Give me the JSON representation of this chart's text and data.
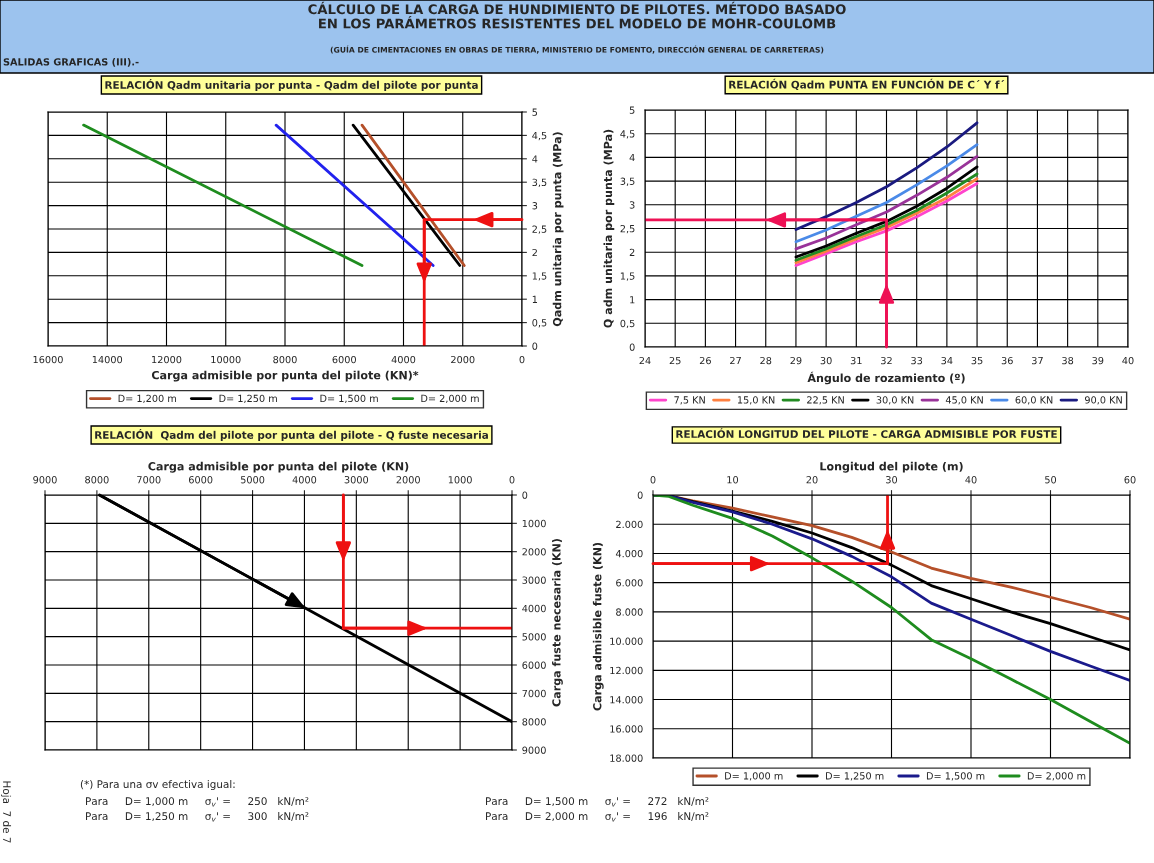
{
  "chart_data": [
    {
      "type": "other",
      "title": "CÁLCULO DE LA CARGA DE HUNDIMIENTO DE PILOTES. MÉTODO BASADO\nEN LOS PARÁMETROS RESISTENTES DEL MODELO DE MOHR-COULOMB",
      "subtitle": "(GUÍA DE CIMENTACIONES EN OBRAS DE TIERRA, MINISTERIO DE FOMENTO, DIRECCIÓN GENERAL DE CARRETERAS)",
      "annotations": [
        "SALIDAS GRAFICAS (III).-"
      ]
    },
    {
      "type": "line",
      "title": "RELACIÓN Qadm unitaria por punta - Qadm del pilote por punta",
      "xlabel": "Carga admisible por punta del pilote (KN)*",
      "y2label": "Qadm unitaria por punta (MPa)",
      "xlim": [
        16000,
        0
      ],
      "xticks": [
        16000,
        14000,
        12000,
        10000,
        8000,
        6000,
        4000,
        2000,
        0
      ],
      "y2lim": [
        0,
        5
      ],
      "y2ticks": [
        0,
        {
          "value": 0.5,
          "label": "0,5"
        },
        1,
        {
          "value": 1.5,
          "label": "1,5"
        },
        2,
        {
          "value": 2.5,
          "label": "2,5"
        },
        3,
        {
          "value": 3.5,
          "label": "3,5"
        },
        4,
        {
          "value": 4.5,
          "label": "4,5"
        },
        5
      ],
      "grid": true,
      "legend": "bottom",
      "series": [
        {
          "name": "D= 1,200 m",
          "color": "#b5502a",
          "axis": "y2",
          "x": [
            5400,
            1950
          ],
          "values": [
            4.72,
            1.72
          ]
        },
        {
          "name": "D= 1,250 m",
          "color": "#000000",
          "axis": "y2",
          "x": [
            5700,
            2100
          ],
          "values": [
            4.72,
            1.72
          ]
        },
        {
          "name": "D= 1,500 m",
          "color": "#2222ee",
          "axis": "y2",
          "x": [
            8300,
            3000
          ],
          "values": [
            4.72,
            1.72
          ]
        },
        {
          "name": "D= 2,000 m",
          "color": "#1e8c1e",
          "axis": "y2",
          "x": [
            14800,
            5400
          ],
          "values": [
            4.72,
            1.72
          ]
        },
        {
          "color": "#ee1111",
          "axis": "y2",
          "x": [
            0,
            3300,
            3300
          ],
          "values": [
            2.7,
            2.7,
            0
          ]
        }
      ]
    },
    {
      "type": "line",
      "title": "RELACIÓN Qadm PUNTA EN FUNCIÓN DE C´ Y f´",
      "xlabel": "Ángulo de rozamiento (º)",
      "ylabel": "Q adm unitaria por punta (MPa)",
      "xlim": [
        24,
        40
      ],
      "xticks": [
        24,
        25,
        26,
        27,
        28,
        29,
        30,
        31,
        32,
        33,
        34,
        35,
        36,
        37,
        38,
        39,
        40
      ],
      "ylim": [
        0,
        5
      ],
      "yticks": [
        0,
        {
          "value": 0.5,
          "label": "0,5"
        },
        1,
        {
          "value": 1.5,
          "label": "1,5"
        },
        2,
        {
          "value": 2.5,
          "label": "2,5"
        },
        3,
        {
          "value": 3.5,
          "label": "3,5"
        },
        4,
        {
          "value": 4.5,
          "label": "4,5"
        },
        5
      ],
      "grid": true,
      "legend": "bottom",
      "series": [
        {
          "name": "7,5 KN",
          "color": "#ff44cc",
          "x": [
            29,
            30,
            31,
            32,
            33,
            34,
            35
          ],
          "values": [
            1.72,
            1.97,
            2.22,
            2.45,
            2.75,
            3.08,
            3.45
          ]
        },
        {
          "name": "15,0 KN",
          "color": "#ff8040",
          "x": [
            29,
            30,
            31,
            32,
            33,
            34,
            35
          ],
          "values": [
            1.78,
            2.02,
            2.28,
            2.52,
            2.82,
            3.15,
            3.55
          ]
        },
        {
          "name": "22,5 KN",
          "color": "#228b22",
          "x": [
            29,
            30,
            31,
            32,
            33,
            34,
            35
          ],
          "values": [
            1.83,
            2.07,
            2.33,
            2.58,
            2.88,
            3.25,
            3.65
          ]
        },
        {
          "name": "30,0 KN",
          "color": "#000000",
          "x": [
            29,
            30,
            31,
            32,
            33,
            34,
            35
          ],
          "values": [
            1.9,
            2.13,
            2.4,
            2.65,
            2.97,
            3.35,
            3.8
          ]
        },
        {
          "name": "45,0 KN",
          "color": "#993399",
          "x": [
            29,
            30,
            31,
            32,
            33,
            34,
            35
          ],
          "values": [
            2.07,
            2.3,
            2.58,
            2.85,
            3.2,
            3.58,
            4.02
          ]
        },
        {
          "name": "60,0 KN",
          "color": "#4a8ae8",
          "x": [
            29,
            30,
            31,
            32,
            33,
            34,
            35
          ],
          "values": [
            2.22,
            2.47,
            2.76,
            3.05,
            3.42,
            3.82,
            4.27
          ]
        },
        {
          "name": "90,0 KN",
          "color": "#1a1a80",
          "x": [
            29,
            30,
            31,
            32,
            33,
            34,
            35
          ],
          "values": [
            2.48,
            2.75,
            3.05,
            3.38,
            3.78,
            4.22,
            4.73
          ]
        },
        {
          "color": "#ee1155",
          "x": [
            32,
            32,
            24
          ],
          "values": [
            0,
            2.68,
            2.68
          ]
        }
      ]
    },
    {
      "type": "line",
      "title": "RELACIÓN  Qadm del pilote por punta del pilote - Q fuste necesaria",
      "xlabel": "Carga admisible por punta del pilote (KN)",
      "y2label": "Carga fuste necesaria (KN)",
      "xlim": [
        9000,
        0
      ],
      "xticks": [
        9000,
        8000,
        7000,
        6000,
        5000,
        4000,
        3000,
        2000,
        1000,
        0
      ],
      "y2lim": [
        9000,
        0
      ],
      "y2ticks": [
        0,
        1000,
        2000,
        3000,
        4000,
        5000,
        6000,
        7000,
        8000,
        9000
      ],
      "grid": true,
      "series": [
        {
          "color": "#000000",
          "axis": "y2",
          "x": [
            7950,
            0
          ],
          "values": [
            0,
            8000
          ]
        },
        {
          "color": "#ee1111",
          "axis": "y2",
          "x": [
            3250,
            3250,
            0
          ],
          "values": [
            0,
            4700,
            4700
          ]
        }
      ]
    },
    {
      "type": "line",
      "title": "RELACIÓN LONGITUD DEL PILOTE - CARGA ADMISIBLE POR FUSTE",
      "xlabel": "Longitud del pilote (m)",
      "ylabel": "Carga admisible fuste (KN)",
      "xlim": [
        0,
        60
      ],
      "xticks": [
        0,
        10,
        20,
        30,
        40,
        50,
        60
      ],
      "ylim": [
        18000,
        0
      ],
      "yticks": [
        0,
        {
          "value": 2000,
          "label": "2.000"
        },
        {
          "value": 4000,
          "label": "4.000"
        },
        {
          "value": 6000,
          "label": "6.000"
        },
        {
          "value": 8000,
          "label": "8.000"
        },
        {
          "value": 10000,
          "label": "10.000"
        },
        {
          "value": 12000,
          "label": "12.000"
        },
        {
          "value": 14000,
          "label": "14.000"
        },
        {
          "value": 16000,
          "label": "16.000"
        },
        {
          "value": 18000,
          "label": "18.000"
        }
      ],
      "grid": true,
      "legend": "bottom",
      "series": [
        {
          "name": "D= 1,000 m",
          "color": "#b5502a",
          "x": [
            0,
            2,
            5,
            10,
            15,
            20,
            25,
            30,
            35,
            40,
            45,
            50,
            55,
            60
          ],
          "values": [
            0,
            50,
            400,
            900,
            1500,
            2100,
            2900,
            3900,
            5000,
            5700,
            6300,
            7000,
            7700,
            8500
          ]
        },
        {
          "name": "D= 1,250 m",
          "color": "#000000",
          "x": [
            0,
            2,
            5,
            10,
            15,
            20,
            25,
            30,
            35,
            40,
            45,
            50,
            55,
            60
          ],
          "values": [
            0,
            50,
            450,
            1100,
            1800,
            2600,
            3600,
            4800,
            6200,
            7100,
            8000,
            8800,
            9700,
            10600
          ]
        },
        {
          "name": "D= 1,500 m",
          "color": "#1a1a8c",
          "x": [
            0,
            2,
            5,
            10,
            15,
            20,
            25,
            30,
            35,
            40,
            45,
            50,
            55,
            60
          ],
          "values": [
            0,
            50,
            500,
            1150,
            2000,
            3000,
            4200,
            5600,
            7400,
            8500,
            9600,
            10700,
            11700,
            12700
          ]
        },
        {
          "name": "D= 2,000 m",
          "color": "#1e8c1e",
          "x": [
            0,
            2,
            5,
            10,
            15,
            20,
            25,
            30,
            35,
            40,
            45,
            50,
            55,
            60
          ],
          "values": [
            0,
            100,
            700,
            1600,
            2800,
            4300,
            5900,
            7700,
            9900,
            11200,
            12600,
            14000,
            15500,
            17000
          ]
        },
        {
          "color": "#ee1111",
          "x": [
            0,
            29.5,
            29.5
          ],
          "values": [
            4700,
            4700,
            0
          ]
        }
      ]
    },
    {
      "type": "other",
      "annotations": [
        "(*) Para una σv efectiva igual:",
        "Para     D= 1,000 m     σ$_{v}$' =     250   kN/m²",
        "Para     D= 1,250 m     σ$_{v}$' =     300   kN/m²",
        "Para     D= 1,500 m     σ$_{v}$' =     272   kN/m²",
        "Para     D= 2,000 m     σ$_{v}$' =     196   kN/m²",
        "Hoja  7 de 7"
      ]
    }
  ]
}
